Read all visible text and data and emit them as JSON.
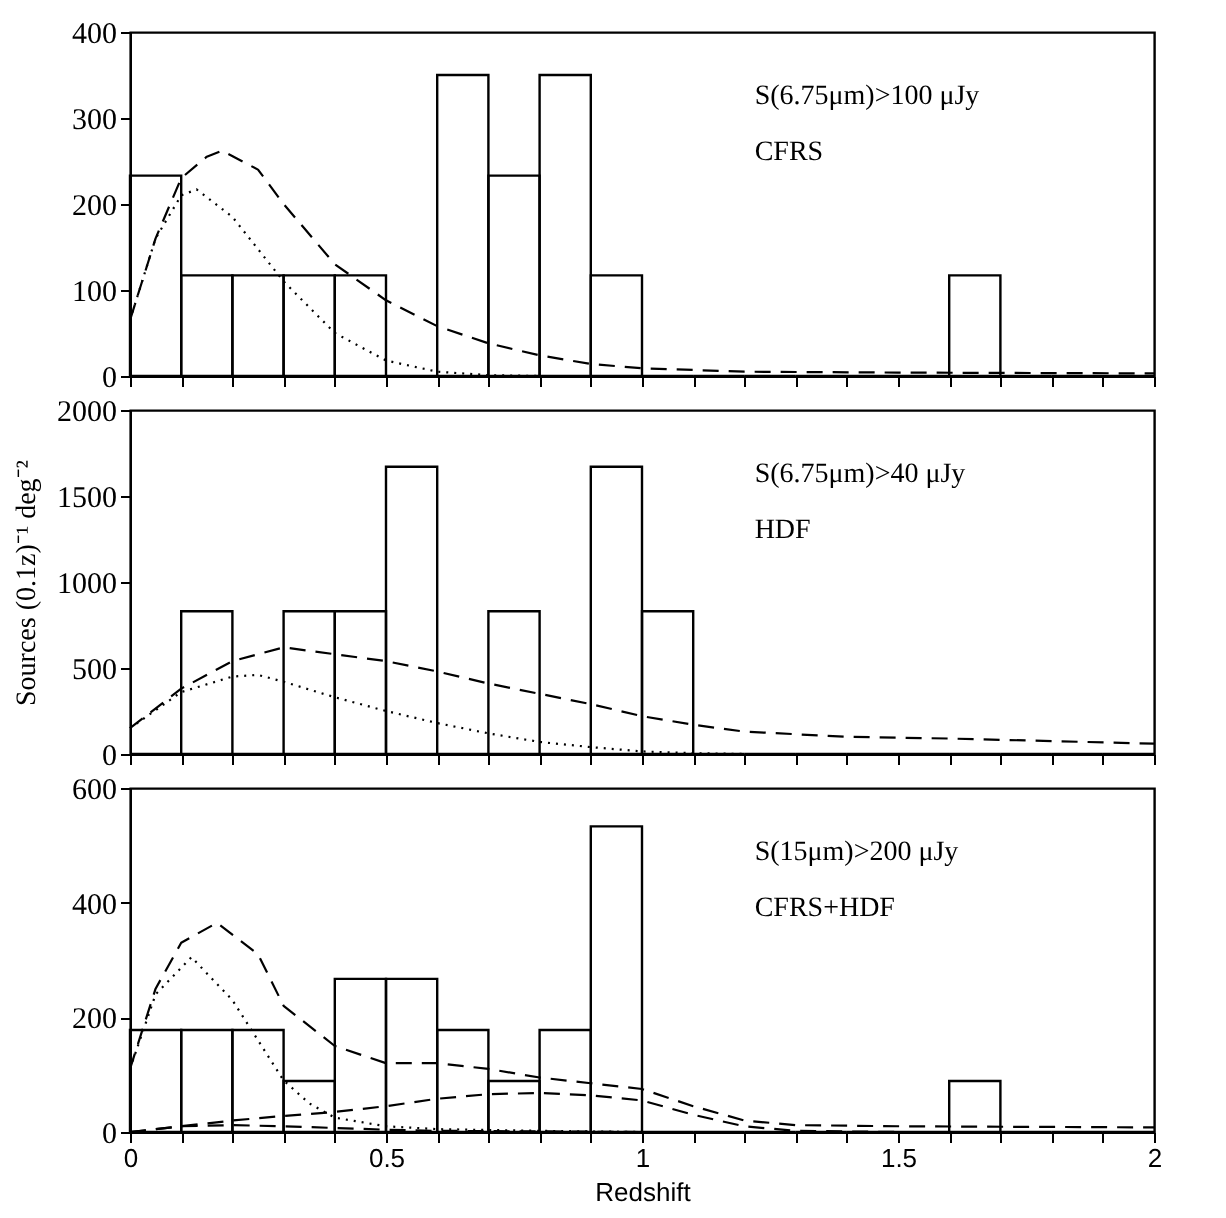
{
  "chart_data": [
    {
      "type": "histogram",
      "bins": [
        0,
        0.1,
        0.2,
        0.3,
        0.4,
        0.5,
        0.6,
        0.7,
        0.8,
        0.9,
        1.0,
        1.1,
        1.2,
        1.3,
        1.4,
        1.5,
        1.6,
        1.7,
        1.8,
        1.9,
        2.0
      ],
      "values": [
        233,
        117,
        117,
        117,
        117,
        0,
        350,
        233,
        350,
        117,
        0,
        0,
        0,
        0,
        0,
        0,
        117,
        0,
        0,
        0
      ],
      "color": "#000000",
      "series": [
        {
          "type": "line",
          "line_style": "dashed",
          "color": "#000000",
          "x": [
            0,
            0.05,
            0.1,
            0.15,
            0.18,
            0.25,
            0.3,
            0.4,
            0.5,
            0.6,
            0.7,
            0.8,
            0.9,
            1.0,
            1.2,
            1.5,
            2.0
          ],
          "values": [
            65,
            160,
            230,
            255,
            262,
            240,
            200,
            130,
            88,
            58,
            38,
            24,
            14,
            9,
            5,
            4,
            3
          ]
        },
        {
          "type": "line",
          "line_style": "dotted",
          "color": "#000000",
          "x": [
            0,
            0.05,
            0.1,
            0.13,
            0.2,
            0.3,
            0.4,
            0.5,
            0.6,
            0.7,
            0.8,
            2.0
          ],
          "values": [
            65,
            160,
            210,
            217,
            185,
            110,
            50,
            18,
            5,
            1,
            0,
            0
          ]
        }
      ],
      "xlim": [
        0,
        2
      ],
      "xticks": [
        0,
        {
          "value": 0.1,
          "label": null
        },
        {
          "value": 0.2,
          "label": null
        },
        {
          "value": 0.3,
          "label": null
        },
        {
          "value": 0.4,
          "label": null
        },
        0.5,
        {
          "value": 0.6,
          "label": null
        },
        {
          "value": 0.7,
          "label": null
        },
        {
          "value": 0.8,
          "label": null
        },
        {
          "value": 0.9,
          "label": null
        },
        1,
        {
          "value": 1.1,
          "label": null
        },
        {
          "value": 1.2,
          "label": null
        },
        {
          "value": 1.3,
          "label": null
        },
        {
          "value": 1.4,
          "label": null
        },
        1.5,
        {
          "value": 1.6,
          "label": null
        },
        {
          "value": 1.7,
          "label": null
        },
        {
          "value": 1.8,
          "label": null
        },
        {
          "value": 1.9,
          "label": null
        },
        2
      ],
      "ylim": [
        0,
        400
      ],
      "yticks": [
        0,
        100,
        200,
        300,
        400
      ],
      "tick_labels": "y",
      "grid": false,
      "legend": false,
      "annotations": [
        "S(6.75μm)>100  μJy",
        "CFRS"
      ]
    },
    {
      "type": "histogram",
      "bins": [
        0,
        0.1,
        0.2,
        0.3,
        0.4,
        0.5,
        0.6,
        0.7,
        0.8,
        0.9,
        1.0,
        1.1,
        1.2,
        1.3,
        1.4,
        1.5,
        1.6,
        1.7,
        1.8,
        1.9,
        2.0
      ],
      "values": [
        0,
        830,
        0,
        830,
        830,
        1670,
        0,
        830,
        0,
        1670,
        830,
        0,
        0,
        0,
        0,
        0,
        0,
        0,
        0,
        0
      ],
      "color": "#000000",
      "series": [
        {
          "type": "line",
          "line_style": "dashed",
          "color": "#000000",
          "x": [
            0,
            0.1,
            0.2,
            0.3,
            0.4,
            0.5,
            0.6,
            0.7,
            0.8,
            0.9,
            1.0,
            1.1,
            1.2,
            1.4,
            1.6,
            1.8,
            2.0
          ],
          "values": [
            150,
            380,
            540,
            620,
            580,
            540,
            480,
            410,
            350,
            290,
            220,
            170,
            130,
            100,
            90,
            75,
            60
          ]
        },
        {
          "type": "line",
          "line_style": "dotted",
          "color": "#000000",
          "x": [
            0,
            0.1,
            0.2,
            0.25,
            0.3,
            0.4,
            0.5,
            0.6,
            0.7,
            0.8,
            0.9,
            1.0,
            1.1,
            1.2,
            2.0
          ],
          "values": [
            150,
            360,
            450,
            460,
            420,
            330,
            250,
            180,
            120,
            70,
            40,
            15,
            5,
            0,
            0
          ]
        }
      ],
      "xlim": [
        0,
        2
      ],
      "xticks": [
        0,
        {
          "value": 0.1,
          "label": null
        },
        {
          "value": 0.2,
          "label": null
        },
        {
          "value": 0.3,
          "label": null
        },
        {
          "value": 0.4,
          "label": null
        },
        0.5,
        {
          "value": 0.6,
          "label": null
        },
        {
          "value": 0.7,
          "label": null
        },
        {
          "value": 0.8,
          "label": null
        },
        {
          "value": 0.9,
          "label": null
        },
        1,
        {
          "value": 1.1,
          "label": null
        },
        {
          "value": 1.2,
          "label": null
        },
        {
          "value": 1.3,
          "label": null
        },
        {
          "value": 1.4,
          "label": null
        },
        1.5,
        {
          "value": 1.6,
          "label": null
        },
        {
          "value": 1.7,
          "label": null
        },
        {
          "value": 1.8,
          "label": null
        },
        {
          "value": 1.9,
          "label": null
        },
        2
      ],
      "ylim": [
        0,
        2000
      ],
      "yticks": [
        0,
        500,
        1000,
        1500,
        2000
      ],
      "tick_labels": "y",
      "grid": false,
      "legend": false,
      "ylabel": "Sources (0.1z)⁻¹ deg⁻²",
      "annotations": [
        "S(6.75μm)>40  μJy",
        "HDF"
      ]
    },
    {
      "type": "histogram",
      "bins": [
        0,
        0.1,
        0.2,
        0.3,
        0.4,
        0.5,
        0.6,
        0.7,
        0.8,
        0.9,
        1.0,
        1.1,
        1.2,
        1.3,
        1.4,
        1.5,
        1.6,
        1.7,
        1.8,
        1.9,
        2.0
      ],
      "values": [
        178,
        178,
        178,
        89,
        267,
        267,
        178,
        89,
        178,
        533,
        0,
        0,
        0,
        0,
        0,
        0,
        89,
        0,
        0,
        0
      ],
      "color": "#000000",
      "series": [
        {
          "type": "line",
          "line_style": "dashed",
          "color": "#000000",
          "x": [
            0,
            0.05,
            0.1,
            0.17,
            0.25,
            0.3,
            0.4,
            0.5,
            0.6,
            0.7,
            0.8,
            0.9,
            1.0,
            1.1,
            1.2,
            1.3,
            1.5,
            2.0
          ],
          "values": [
            110,
            250,
            330,
            365,
            310,
            220,
            150,
            120,
            120,
            110,
            95,
            85,
            75,
            45,
            20,
            12,
            10,
            8
          ]
        },
        {
          "type": "line",
          "line_style": "dotted",
          "color": "#000000",
          "x": [
            0,
            0.05,
            0.12,
            0.2,
            0.25,
            0.3,
            0.35,
            0.4,
            0.5,
            0.6,
            0.8,
            1.0
          ],
          "values": [
            110,
            240,
            305,
            230,
            160,
            90,
            50,
            25,
            10,
            5,
            2,
            0
          ]
        },
        {
          "type": "line",
          "line_style": "dashed",
          "color": "#000000",
          "x": [
            0,
            0.1,
            0.2,
            0.3,
            0.4,
            0.5,
            0.6,
            0.7,
            0.8,
            0.9,
            1.0,
            1.1,
            1.2,
            1.3,
            1.5,
            2.0
          ],
          "values": [
            0,
            10,
            20,
            28,
            35,
            45,
            58,
            66,
            68,
            64,
            55,
            30,
            10,
            2,
            0,
            0
          ]
        },
        {
          "type": "line",
          "line_style": "dashed",
          "color": "#000000",
          "x": [
            0,
            0.1,
            0.2,
            0.3,
            0.4,
            0.5,
            0.6,
            0.8,
            1.0
          ],
          "values": [
            0,
            10,
            12,
            10,
            7,
            4,
            2,
            1,
            0
          ]
        }
      ],
      "xlim": [
        0,
        2
      ],
      "xticks": [
        0,
        {
          "value": 0.1,
          "label": null
        },
        {
          "value": 0.2,
          "label": null
        },
        {
          "value": 0.3,
          "label": null
        },
        {
          "value": 0.4,
          "label": null
        },
        0.5,
        {
          "value": 0.6,
          "label": null
        },
        {
          "value": 0.7,
          "label": null
        },
        {
          "value": 0.8,
          "label": null
        },
        {
          "value": 0.9,
          "label": null
        },
        1,
        {
          "value": 1.1,
          "label": null
        },
        {
          "value": 1.2,
          "label": null
        },
        {
          "value": 1.3,
          "label": null
        },
        {
          "value": 1.4,
          "label": null
        },
        1.5,
        {
          "value": 1.6,
          "label": null
        },
        {
          "value": 1.7,
          "label": null
        },
        {
          "value": 1.8,
          "label": null
        },
        {
          "value": 1.9,
          "label": null
        },
        2
      ],
      "ylim": [
        0,
        600
      ],
      "yticks": [
        0,
        200,
        400,
        600
      ],
      "grid": false,
      "legend": false,
      "xlabel": "Redshift",
      "annotations": [
        "S(15μm)>200  μJy",
        "CFRS+HDF"
      ]
    }
  ]
}
